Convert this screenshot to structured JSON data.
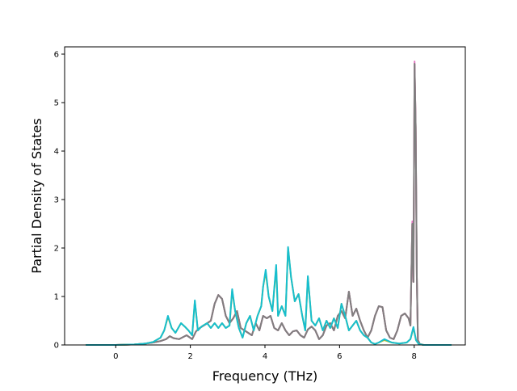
{
  "chart_data": {
    "type": "line",
    "title": "",
    "xlabel": "Frequency (THz)",
    "ylabel": "Partial Density of States",
    "xlim": [
      -1.37,
      9.37
    ],
    "ylim": [
      0,
      6.15
    ],
    "xticks": [
      0,
      2,
      4,
      6,
      8
    ],
    "yticks": [
      0,
      1,
      2,
      3,
      4,
      5,
      6
    ],
    "grid": false,
    "legend": "none",
    "series": [
      {
        "color": "#8c564b",
        "x": [
          -0.8,
          0.0,
          0.5,
          0.8,
          1.0,
          1.2,
          1.35,
          1.45,
          1.55,
          1.7,
          1.9,
          2.05,
          2.15,
          2.25,
          2.4,
          2.55,
          2.65,
          2.75,
          2.85,
          2.95,
          3.05,
          3.15,
          3.25,
          3.35,
          3.45,
          3.55,
          3.65,
          3.75,
          3.85,
          3.95,
          4.05,
          4.15,
          4.25,
          4.35,
          4.45,
          4.55,
          4.65,
          4.75,
          4.85,
          4.95,
          5.05,
          5.15,
          5.25,
          5.35,
          5.45,
          5.55,
          5.65,
          5.75,
          5.85,
          5.95,
          6.05,
          6.15,
          6.25,
          6.35,
          6.45,
          6.55,
          6.65,
          6.75,
          6.85,
          6.95,
          7.05,
          7.15,
          7.25,
          7.35,
          7.45,
          7.55,
          7.65,
          7.75,
          7.85,
          7.9,
          7.95,
          7.98,
          8.01,
          8.04,
          8.07,
          8.1,
          8.15,
          8.25,
          8.4,
          9.0
        ],
        "y": [
          0,
          0,
          0.01,
          0.03,
          0.05,
          0.08,
          0.12,
          0.18,
          0.14,
          0.12,
          0.2,
          0.12,
          0.28,
          0.35,
          0.42,
          0.5,
          0.85,
          1.03,
          0.95,
          0.6,
          0.45,
          0.55,
          0.7,
          0.35,
          0.3,
          0.25,
          0.2,
          0.45,
          0.3,
          0.6,
          0.55,
          0.6,
          0.35,
          0.3,
          0.45,
          0.3,
          0.2,
          0.28,
          0.3,
          0.2,
          0.15,
          0.32,
          0.38,
          0.3,
          0.12,
          0.2,
          0.4,
          0.45,
          0.3,
          0.6,
          0.7,
          0.55,
          1.1,
          0.6,
          0.75,
          0.5,
          0.3,
          0.15,
          0.3,
          0.6,
          0.8,
          0.78,
          0.3,
          0.15,
          0.12,
          0.3,
          0.6,
          0.65,
          0.55,
          0.4,
          2.5,
          1.3,
          5.8,
          4.5,
          1.4,
          0.1,
          0.02,
          0,
          0,
          0
        ]
      },
      {
        "color": "#e377c2",
        "x": [
          -0.8,
          0.0,
          0.5,
          0.8,
          1.0,
          1.2,
          1.35,
          1.45,
          1.55,
          1.7,
          1.9,
          2.05,
          2.15,
          2.25,
          2.4,
          2.55,
          2.65,
          2.75,
          2.85,
          2.95,
          3.05,
          3.15,
          3.25,
          3.35,
          3.45,
          3.55,
          3.65,
          3.75,
          3.85,
          3.95,
          4.05,
          4.15,
          4.25,
          4.35,
          4.45,
          4.55,
          4.65,
          4.75,
          4.85,
          4.95,
          5.05,
          5.15,
          5.25,
          5.35,
          5.45,
          5.55,
          5.65,
          5.75,
          5.85,
          5.95,
          6.05,
          6.15,
          6.25,
          6.35,
          6.45,
          6.55,
          6.65,
          6.75,
          6.85,
          6.95,
          7.05,
          7.15,
          7.25,
          7.35,
          7.45,
          7.55,
          7.65,
          7.75,
          7.85,
          7.9,
          7.95,
          7.98,
          8.01,
          8.04,
          8.07,
          8.1,
          8.15,
          8.25,
          8.4,
          9.0
        ],
        "y": [
          0,
          0,
          0.01,
          0.03,
          0.05,
          0.08,
          0.12,
          0.18,
          0.14,
          0.12,
          0.2,
          0.12,
          0.28,
          0.35,
          0.42,
          0.5,
          0.85,
          1.03,
          0.95,
          0.6,
          0.45,
          0.55,
          0.7,
          0.35,
          0.3,
          0.25,
          0.2,
          0.45,
          0.3,
          0.6,
          0.55,
          0.6,
          0.35,
          0.3,
          0.45,
          0.3,
          0.2,
          0.28,
          0.3,
          0.2,
          0.15,
          0.32,
          0.38,
          0.3,
          0.12,
          0.2,
          0.4,
          0.45,
          0.3,
          0.6,
          0.7,
          0.55,
          1.1,
          0.6,
          0.75,
          0.5,
          0.3,
          0.15,
          0.3,
          0.6,
          0.8,
          0.78,
          0.3,
          0.15,
          0.12,
          0.3,
          0.6,
          0.65,
          0.55,
          0.4,
          2.55,
          1.3,
          5.85,
          4.5,
          1.4,
          0.1,
          0.02,
          0,
          0,
          0
        ]
      },
      {
        "color": "#7f7f7f",
        "x": [
          -0.8,
          0.0,
          0.5,
          0.8,
          1.0,
          1.2,
          1.35,
          1.45,
          1.55,
          1.7,
          1.9,
          2.05,
          2.15,
          2.25,
          2.4,
          2.55,
          2.65,
          2.75,
          2.85,
          2.95,
          3.05,
          3.15,
          3.25,
          3.35,
          3.45,
          3.55,
          3.65,
          3.75,
          3.85,
          3.95,
          4.05,
          4.15,
          4.25,
          4.35,
          4.45,
          4.55,
          4.65,
          4.75,
          4.85,
          4.95,
          5.05,
          5.15,
          5.25,
          5.35,
          5.45,
          5.55,
          5.65,
          5.75,
          5.85,
          5.95,
          6.05,
          6.15,
          6.25,
          6.35,
          6.45,
          6.55,
          6.65,
          6.75,
          6.85,
          6.95,
          7.05,
          7.15,
          7.25,
          7.35,
          7.45,
          7.55,
          7.65,
          7.75,
          7.85,
          7.9,
          7.95,
          7.98,
          8.01,
          8.04,
          8.07,
          8.1,
          8.15,
          8.25,
          8.4,
          9.0
        ],
        "y": [
          0,
          0,
          0.01,
          0.03,
          0.05,
          0.08,
          0.12,
          0.18,
          0.14,
          0.12,
          0.2,
          0.12,
          0.28,
          0.35,
          0.42,
          0.5,
          0.85,
          1.03,
          0.95,
          0.6,
          0.45,
          0.55,
          0.7,
          0.35,
          0.3,
          0.25,
          0.2,
          0.45,
          0.3,
          0.6,
          0.55,
          0.6,
          0.35,
          0.3,
          0.45,
          0.3,
          0.2,
          0.28,
          0.3,
          0.2,
          0.15,
          0.32,
          0.38,
          0.3,
          0.12,
          0.2,
          0.4,
          0.45,
          0.3,
          0.6,
          0.7,
          0.55,
          1.1,
          0.6,
          0.75,
          0.5,
          0.3,
          0.15,
          0.3,
          0.6,
          0.8,
          0.78,
          0.3,
          0.15,
          0.12,
          0.3,
          0.6,
          0.65,
          0.55,
          0.4,
          2.5,
          1.3,
          5.8,
          4.5,
          1.4,
          0.1,
          0.02,
          0,
          0,
          0
        ]
      },
      {
        "color": "#bcbd22",
        "x": [
          -0.8,
          0.0,
          0.5,
          0.8,
          1.0,
          1.2,
          1.3,
          1.4,
          1.5,
          1.6,
          1.75,
          1.85,
          1.95,
          2.05,
          2.12,
          2.2,
          2.3,
          2.45,
          2.55,
          2.65,
          2.75,
          2.85,
          2.95,
          3.05,
          3.12,
          3.2,
          3.3,
          3.4,
          3.5,
          3.6,
          3.7,
          3.8,
          3.9,
          3.95,
          4.02,
          4.1,
          4.2,
          4.3,
          4.35,
          4.45,
          4.55,
          4.62,
          4.7,
          4.8,
          4.9,
          5.0,
          5.08,
          5.15,
          5.25,
          5.35,
          5.45,
          5.55,
          5.65,
          5.75,
          5.85,
          5.95,
          6.05,
          6.15,
          6.25,
          6.35,
          6.45,
          6.55,
          6.65,
          6.75,
          6.85,
          6.95,
          7.05,
          7.2,
          7.4,
          7.6,
          7.8,
          7.9,
          7.98,
          8.05,
          8.12,
          8.25,
          8.5,
          9.0
        ],
        "y": [
          0,
          0,
          0.01,
          0.03,
          0.06,
          0.15,
          0.3,
          0.58,
          0.35,
          0.25,
          0.45,
          0.38,
          0.3,
          0.2,
          0.9,
          0.3,
          0.38,
          0.45,
          0.35,
          0.45,
          0.35,
          0.45,
          0.35,
          0.4,
          1.12,
          0.7,
          0.35,
          0.15,
          0.45,
          0.6,
          0.3,
          0.6,
          0.8,
          1.2,
          1.5,
          1.0,
          0.7,
          1.6,
          0.6,
          0.8,
          0.6,
          2.0,
          1.4,
          0.9,
          1.05,
          0.6,
          0.3,
          1.4,
          0.5,
          0.4,
          0.55,
          0.3,
          0.5,
          0.35,
          0.55,
          0.35,
          0.85,
          0.6,
          0.3,
          0.4,
          0.5,
          0.3,
          0.2,
          0.15,
          0.05,
          0.02,
          0.05,
          0.1,
          0.05,
          0.03,
          0.05,
          0.12,
          0.35,
          0.1,
          0.02,
          0,
          0,
          0
        ]
      },
      {
        "color": "#17becf",
        "x": [
          -0.8,
          0.0,
          0.5,
          0.8,
          1.0,
          1.2,
          1.3,
          1.4,
          1.5,
          1.6,
          1.75,
          1.85,
          1.95,
          2.05,
          2.12,
          2.2,
          2.3,
          2.45,
          2.55,
          2.65,
          2.75,
          2.85,
          2.95,
          3.05,
          3.12,
          3.2,
          3.3,
          3.4,
          3.5,
          3.6,
          3.7,
          3.8,
          3.9,
          3.95,
          4.02,
          4.1,
          4.2,
          4.3,
          4.35,
          4.45,
          4.55,
          4.62,
          4.7,
          4.8,
          4.9,
          5.0,
          5.08,
          5.15,
          5.25,
          5.35,
          5.45,
          5.55,
          5.65,
          5.75,
          5.85,
          5.95,
          6.05,
          6.15,
          6.25,
          6.35,
          6.45,
          6.55,
          6.65,
          6.75,
          6.85,
          6.95,
          7.05,
          7.2,
          7.4,
          7.6,
          7.8,
          7.9,
          7.98,
          8.05,
          8.12,
          8.25,
          8.5,
          9.0
        ],
        "y": [
          0,
          0,
          0.01,
          0.03,
          0.06,
          0.15,
          0.3,
          0.6,
          0.35,
          0.25,
          0.45,
          0.38,
          0.3,
          0.2,
          0.92,
          0.3,
          0.38,
          0.45,
          0.35,
          0.45,
          0.35,
          0.45,
          0.35,
          0.4,
          1.15,
          0.7,
          0.35,
          0.15,
          0.45,
          0.6,
          0.3,
          0.6,
          0.8,
          1.2,
          1.55,
          1.0,
          0.7,
          1.65,
          0.6,
          0.8,
          0.6,
          2.02,
          1.4,
          0.9,
          1.05,
          0.6,
          0.3,
          1.42,
          0.5,
          0.4,
          0.55,
          0.3,
          0.5,
          0.35,
          0.55,
          0.35,
          0.85,
          0.6,
          0.3,
          0.4,
          0.5,
          0.3,
          0.2,
          0.15,
          0.05,
          0.02,
          0.05,
          0.12,
          0.05,
          0.03,
          0.05,
          0.12,
          0.37,
          0.1,
          0.02,
          0,
          0,
          0
        ]
      }
    ]
  }
}
